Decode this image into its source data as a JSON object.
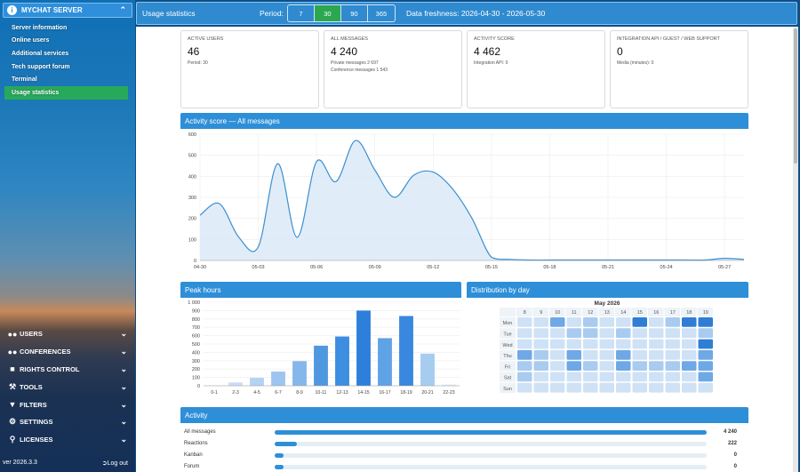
{
  "sidebar": {
    "header": "MYCHAT SERVER",
    "items": [
      {
        "label": "Server information"
      },
      {
        "label": "Online users"
      },
      {
        "label": "Additional services"
      },
      {
        "label": "Tech support forum"
      },
      {
        "label": "Terminal"
      },
      {
        "label": "Usage statistics",
        "active": true
      }
    ],
    "groups": [
      {
        "label": "USERS",
        "icon": "users-icon"
      },
      {
        "label": "CONFERENCES",
        "icon": "conferences-icon"
      },
      {
        "label": "RIGHTS CONTROL",
        "icon": "rights-icon"
      },
      {
        "label": "TOOLS",
        "icon": "wrench-icon"
      },
      {
        "label": "FILTERS",
        "icon": "filter-icon"
      },
      {
        "label": "SETTINGS",
        "icon": "gears-icon"
      },
      {
        "label": "LICENSES",
        "icon": "key-icon"
      }
    ],
    "version": "ver 2026.3.3",
    "logout": "Log out"
  },
  "topbar": {
    "title": "Usage statistics",
    "period_label": "Period:",
    "periods": [
      "7",
      "30",
      "90",
      "365"
    ],
    "selected_period": "30",
    "freshness": "Data freshness: 2026-04-30 - 2026-05-30"
  },
  "cards": [
    {
      "label": "ACTIVE USERS",
      "value": "46",
      "sub": [
        "Period: 30"
      ]
    },
    {
      "label": "ALL MESSAGES",
      "value": "4 240",
      "sub": [
        "Private messages 2 697",
        "Conference messages 1 543"
      ]
    },
    {
      "label": "ACTIVITY SCORE",
      "value": "4 462",
      "sub": [
        "Integration API: 0"
      ]
    },
    {
      "label": "INTEGRATION API / GUEST / WEB SUPPORT",
      "value": "0",
      "sub": [
        "Media (minutes): 0"
      ]
    }
  ],
  "activity_chart": {
    "title": "Activity score — All messages",
    "chart_data": {
      "type": "area",
      "x": [
        "04-30",
        "05-01",
        "05-02",
        "05-03",
        "05-04",
        "05-05",
        "05-06",
        "05-07",
        "05-08",
        "05-09",
        "05-10",
        "05-11",
        "05-12",
        "05-13",
        "05-14",
        "05-15",
        "05-16",
        "05-17",
        "05-18",
        "05-19",
        "05-20",
        "05-21",
        "05-22",
        "05-23",
        "05-24",
        "05-25",
        "05-26",
        "05-27",
        "05-28"
      ],
      "values": [
        215,
        270,
        110,
        65,
        460,
        110,
        470,
        375,
        570,
        430,
        300,
        405,
        420,
        340,
        200,
        15,
        5,
        2,
        2,
        2,
        2,
        2,
        2,
        2,
        2,
        2,
        2,
        10,
        5
      ],
      "x_ticks": [
        "04-30",
        "05-03",
        "05-06",
        "05-09",
        "05-12",
        "05-15",
        "05-18",
        "05-21",
        "05-24",
        "05-27"
      ],
      "ylim": [
        0,
        600
      ],
      "y_ticks": [
        0,
        100,
        200,
        300,
        400,
        500,
        600
      ],
      "grid": true
    }
  },
  "peak_hours": {
    "title": "Peak hours",
    "chart_data": {
      "type": "bar",
      "categories": [
        "0-1",
        "2-3",
        "4-5",
        "6-7",
        "8-9",
        "10-11",
        "12-13",
        "14-15",
        "16-17",
        "18-19",
        "20-21",
        "22-23"
      ],
      "values": [
        0,
        40,
        95,
        170,
        295,
        480,
        590,
        900,
        570,
        835,
        385,
        15
      ],
      "ylim": [
        0,
        1000
      ],
      "y_ticks": [
        "0",
        "100",
        "200",
        "300",
        "400",
        "500",
        "600",
        "700",
        "800",
        "900",
        "1 000"
      ],
      "colors": [
        "#dceafa",
        "#c9def6",
        "#b4d2f2",
        "#9ec5ef",
        "#85b7ea",
        "#4f98df",
        "#3d8de0",
        "#2e7fdc",
        "#5fa3e6",
        "#3a87df",
        "#a6ccf0",
        "#dceafa"
      ]
    }
  },
  "distribution": {
    "title": "Distribution by day",
    "month": "May 2026",
    "columns": [
      "8",
      "9",
      "10",
      "11",
      "12",
      "13",
      "14",
      "15",
      "16",
      "17",
      "18",
      "19"
    ],
    "rows": [
      "Mon",
      "Tue",
      "Wed",
      "Thu",
      "Fri",
      "Sat",
      "Sun"
    ],
    "chart_data": {
      "type": "heatmap",
      "levels": [
        [
          1,
          1,
          3,
          1,
          2,
          1,
          1,
          4,
          1,
          2,
          4,
          4
        ],
        [
          1,
          1,
          1,
          2,
          2,
          1,
          2,
          1,
          1,
          1,
          1,
          2
        ],
        [
          1,
          1,
          1,
          1,
          1,
          1,
          1,
          1,
          1,
          1,
          1,
          4
        ],
        [
          3,
          2,
          1,
          3,
          1,
          1,
          3,
          1,
          1,
          1,
          1,
          3
        ],
        [
          2,
          2,
          1,
          3,
          2,
          1,
          3,
          2,
          2,
          2,
          3,
          3
        ],
        [
          2,
          1,
          1,
          1,
          1,
          1,
          1,
          1,
          1,
          1,
          1,
          3
        ],
        [
          1,
          1,
          1,
          1,
          1,
          1,
          1,
          1,
          1,
          1,
          1,
          1
        ]
      ],
      "palette": [
        "#f3f7fc",
        "#cfe1f5",
        "#a9cbef",
        "#6fa8e6",
        "#2f7ed6"
      ]
    }
  },
  "activity": {
    "title": "Activity",
    "rows": [
      {
        "label": "All messages",
        "count": "4 240",
        "value": 4240
      },
      {
        "label": "Reactions",
        "count": "222",
        "value": 222
      },
      {
        "label": "Kanban",
        "count": "0",
        "value": 0
      },
      {
        "label": "Forum",
        "count": "0",
        "value": 0
      }
    ],
    "max": 4240
  },
  "colors": {
    "accent": "#2e8fd8",
    "active_green": "#27a95a",
    "line": "#3b8fd0",
    "fill": "#d8e8f6"
  }
}
